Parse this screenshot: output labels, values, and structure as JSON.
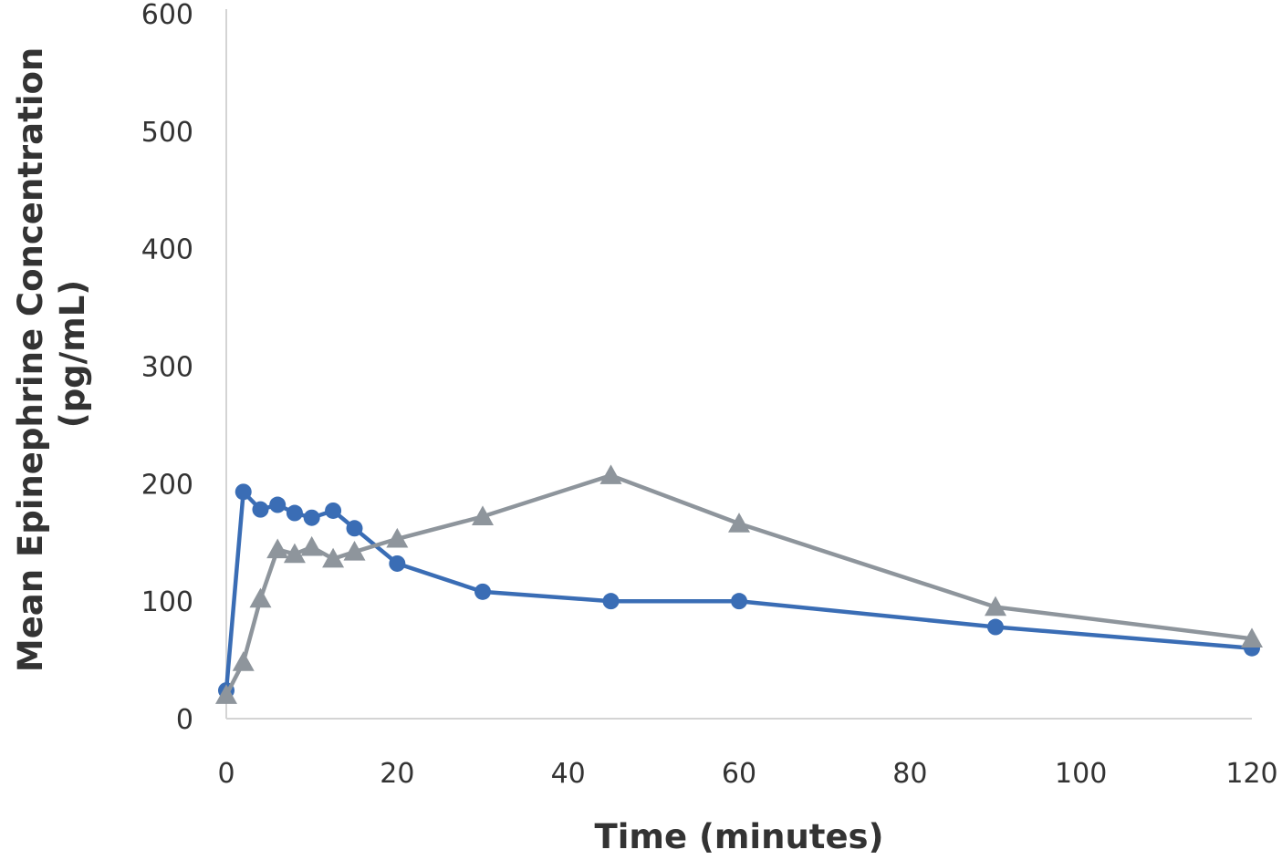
{
  "chart_data": {
    "type": "line",
    "title": "",
    "xlabel": "Time (minutes)",
    "ylabel_lines": [
      "Mean Epinephrine Concentration",
      "(pg/mL)"
    ],
    "xlim": [
      0,
      120
    ],
    "ylim": [
      0,
      600
    ],
    "x_ticks": [
      0,
      20,
      40,
      60,
      80,
      100,
      120
    ],
    "y_ticks": [
      0,
      100,
      200,
      300,
      400,
      500,
      600
    ],
    "grid": false,
    "legend": "none",
    "series": [
      {
        "marker": "circle",
        "color": "#3a6db5",
        "x": [
          0,
          2,
          4,
          6,
          8,
          10,
          12.5,
          15,
          20,
          30,
          45,
          60,
          90,
          120
        ],
        "y": [
          24,
          193,
          178,
          182,
          175,
          171,
          177,
          162,
          132,
          108,
          100,
          100,
          78,
          60
        ]
      },
      {
        "marker": "triangle",
        "color": "#8e959c",
        "x": [
          0,
          2,
          4,
          6,
          8,
          10,
          12.5,
          15,
          20,
          30,
          45,
          60,
          90,
          120
        ],
        "y": [
          20,
          48,
          102,
          144,
          140,
          146,
          136,
          142,
          153,
          172,
          207,
          166,
          95,
          68
        ]
      }
    ]
  }
}
